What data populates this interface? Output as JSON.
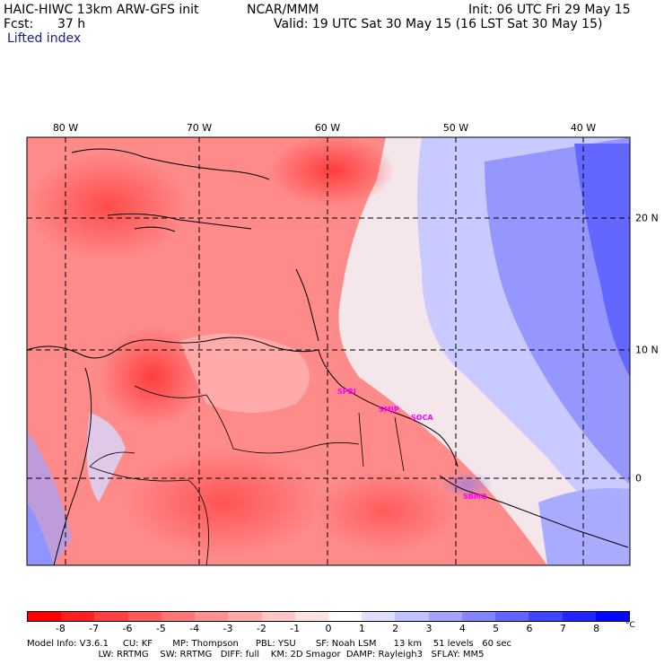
{
  "header": {
    "model": "HAIC-HIWC 13km ARW-GFS init",
    "org": "NCAR/MMM",
    "init": "Init: 06 UTC Fri 29 May 15",
    "fcst_label": "Fcst:",
    "fcst_value": "37 h",
    "valid": "Valid: 19 UTC Sat 30 May 15 (16 LST Sat 30 May 15)",
    "field": "Lifted index"
  },
  "map": {
    "lon_labels": [
      "80 W",
      "70 W",
      "60 W",
      "50 W",
      "40 W"
    ],
    "lat_labels": [
      "20 N",
      "10 N",
      "0"
    ],
    "stations": [
      "SPBI",
      "SMJP",
      "SOCA",
      "SBMQ"
    ]
  },
  "colorbar": {
    "ticks": [
      "-8",
      "-7",
      "-6",
      "-5",
      "-4",
      "-3",
      "-2",
      "-1",
      "0",
      "1",
      "2",
      "3",
      "4",
      "5",
      "6",
      "7",
      "8"
    ],
    "unit": "°C",
    "colors": [
      "#ff0000",
      "#ff2020",
      "#ff4040",
      "#ff5a5a",
      "#ff7676",
      "#ff9090",
      "#ffaaaa",
      "#ffc6c6",
      "#ffe2e2",
      "#ffffff",
      "#dfe0ff",
      "#c0c2ff",
      "#a2a4ff",
      "#8285ff",
      "#6266ff",
      "#4144ff",
      "#2125ff",
      "#0006ff"
    ]
  },
  "footer": {
    "line1": "Model Info: V3.6.1     CU: KF       MP: Thompson      PBL: YSU       SF: Noah LSM      13 km    51 levels   60 sec",
    "line2": "                         LW: RRTMG    SW: RRTMG   DIFF: full    KM: 2D Smagor  DAMP: Rayleigh3   SFLAY: MM5"
  }
}
